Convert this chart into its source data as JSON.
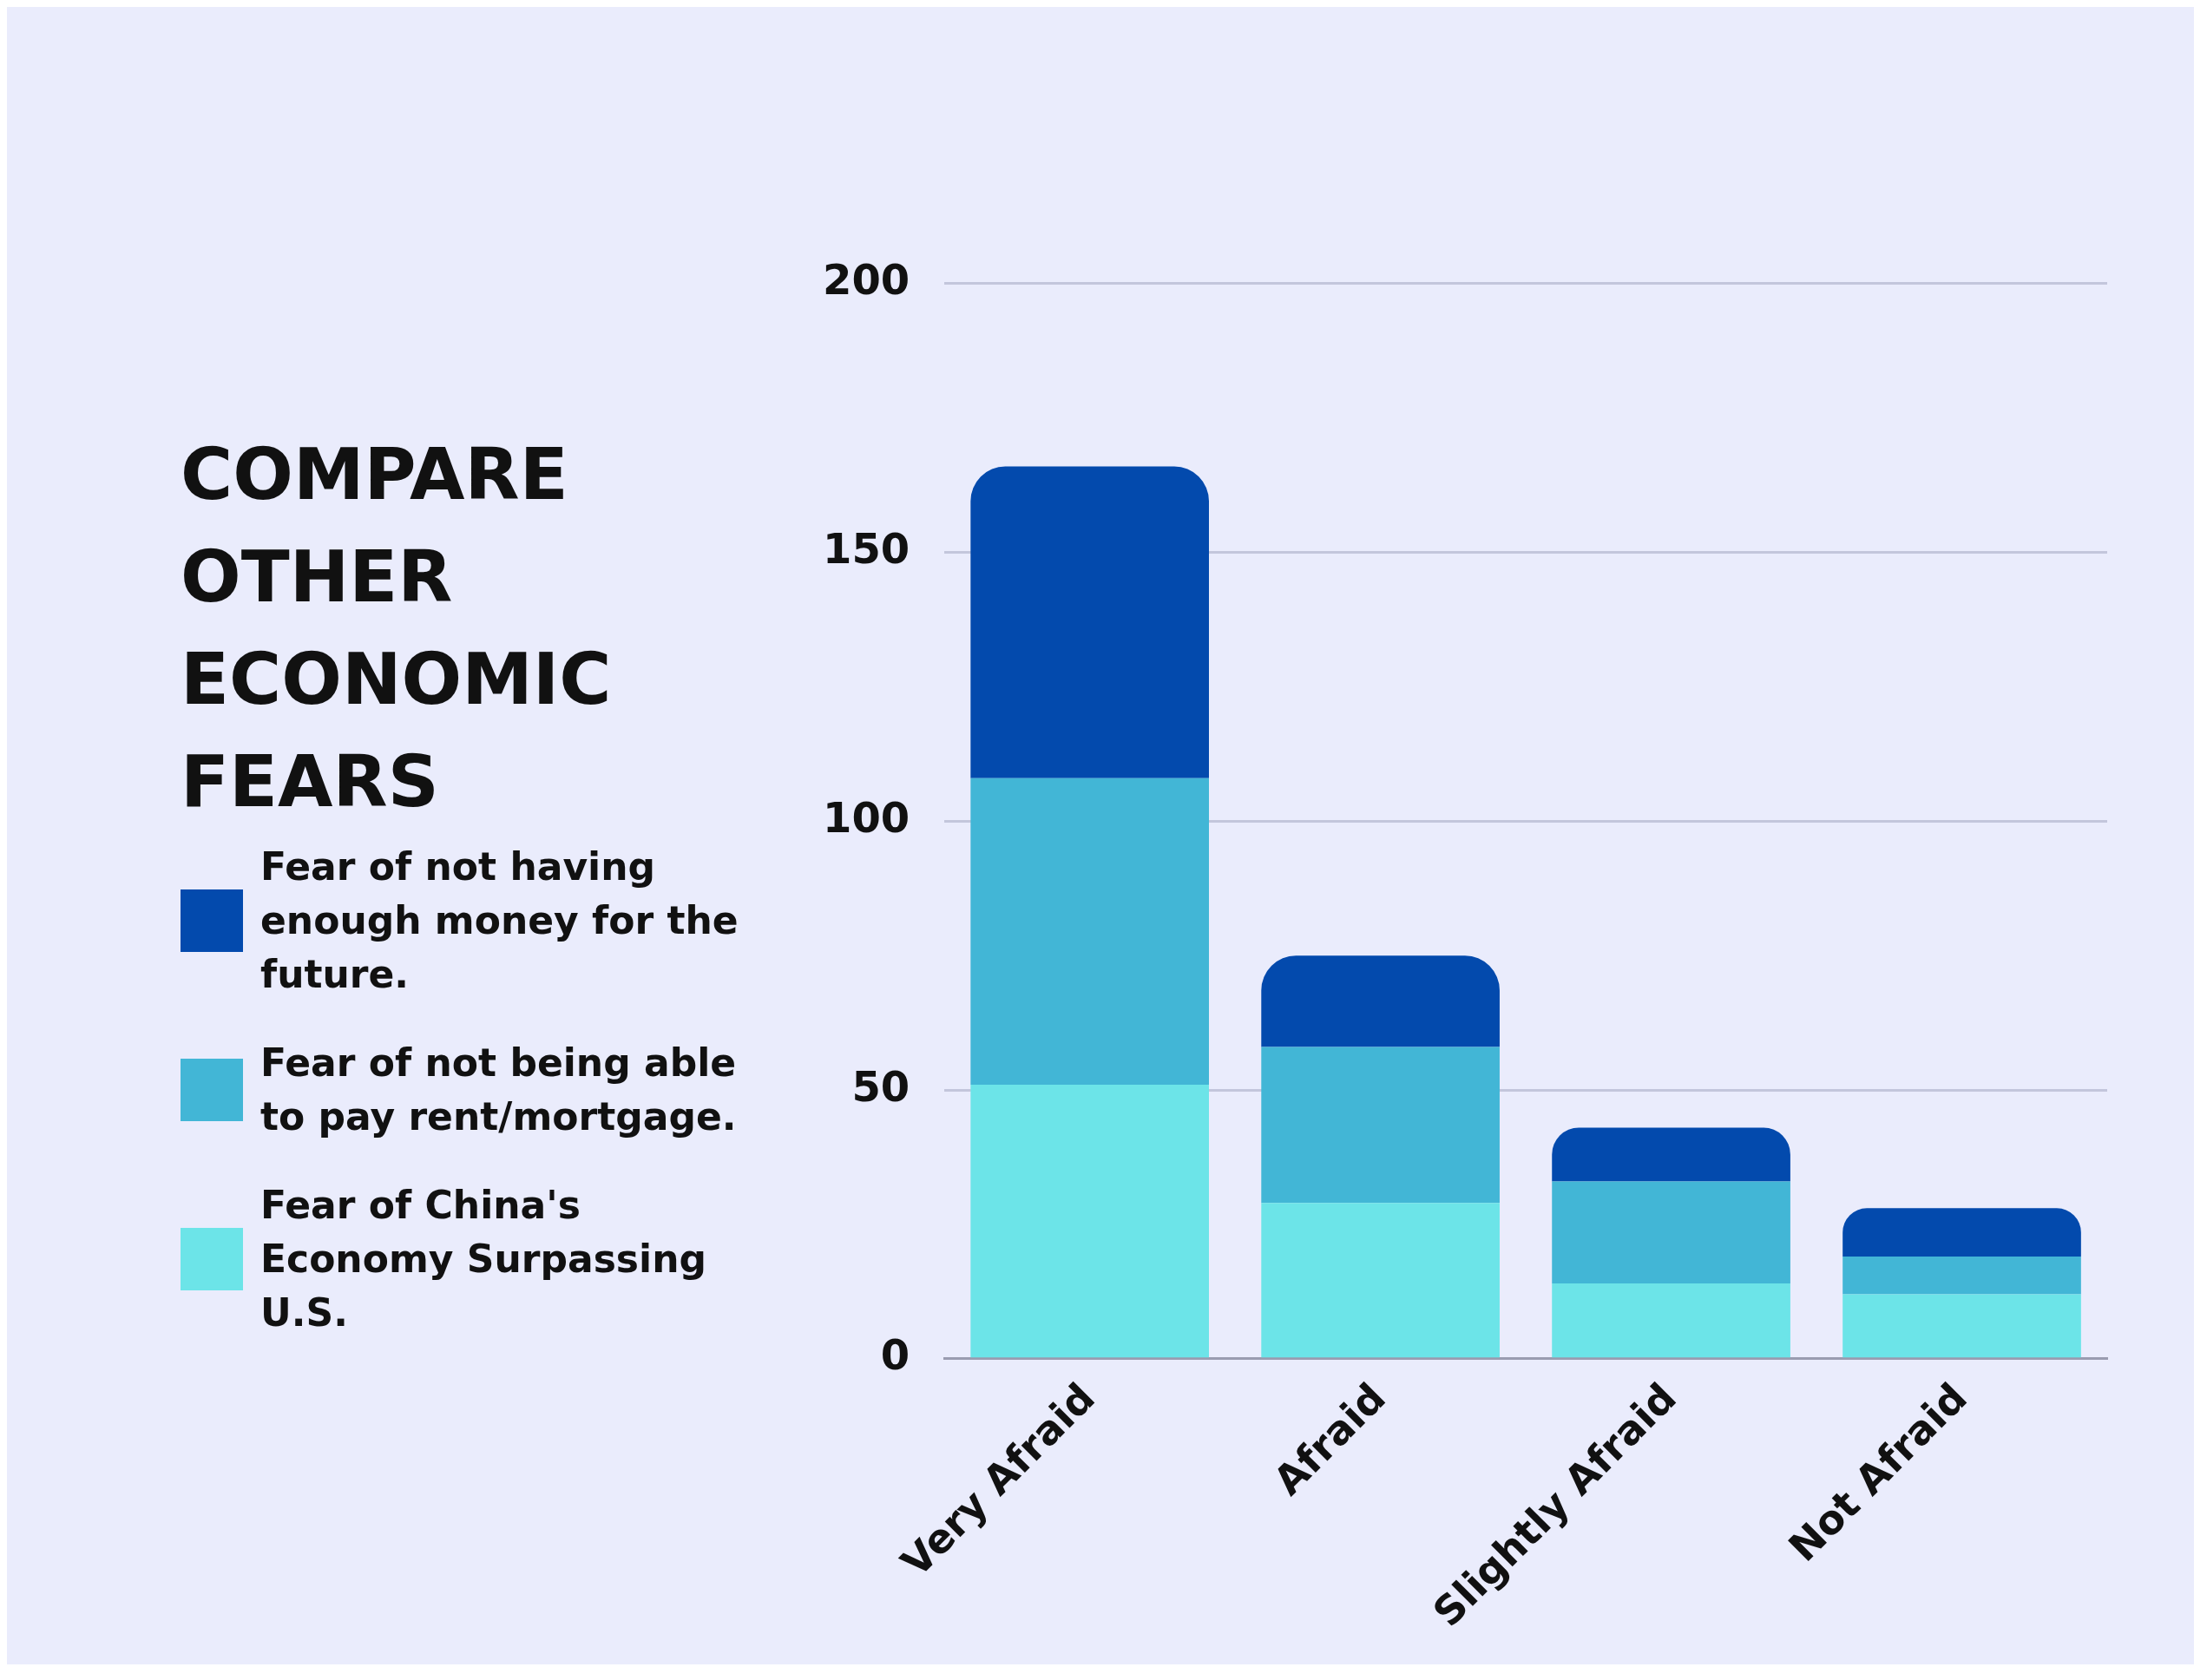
{
  "chart_data": {
    "type": "bar",
    "title": "COMPARE OTHER ECONOMIC FEARS",
    "categories": [
      "Very Afraid",
      "Afraid",
      "Slightly Afraid",
      "Not Afraid"
    ],
    "stacked": true,
    "legend": "left",
    "grid": "y",
    "ylim": [
      0,
      200
    ],
    "yticks": [
      0,
      50,
      100,
      150,
      200
    ],
    "series": [
      {
        "name": "Fear of China's Economy Surpassing U.S.",
        "color": "#6ce4e8",
        "values": [
          51,
          29,
          14,
          12
        ]
      },
      {
        "name": "Fear of not being able to pay rent/mortgage.",
        "color": "#42b6d6",
        "values": [
          57,
          29,
          19,
          7
        ]
      },
      {
        "name": "Fear of not having enough money for the future.",
        "color": "#034aad",
        "values": [
          58,
          17,
          10,
          9
        ]
      }
    ]
  }
}
